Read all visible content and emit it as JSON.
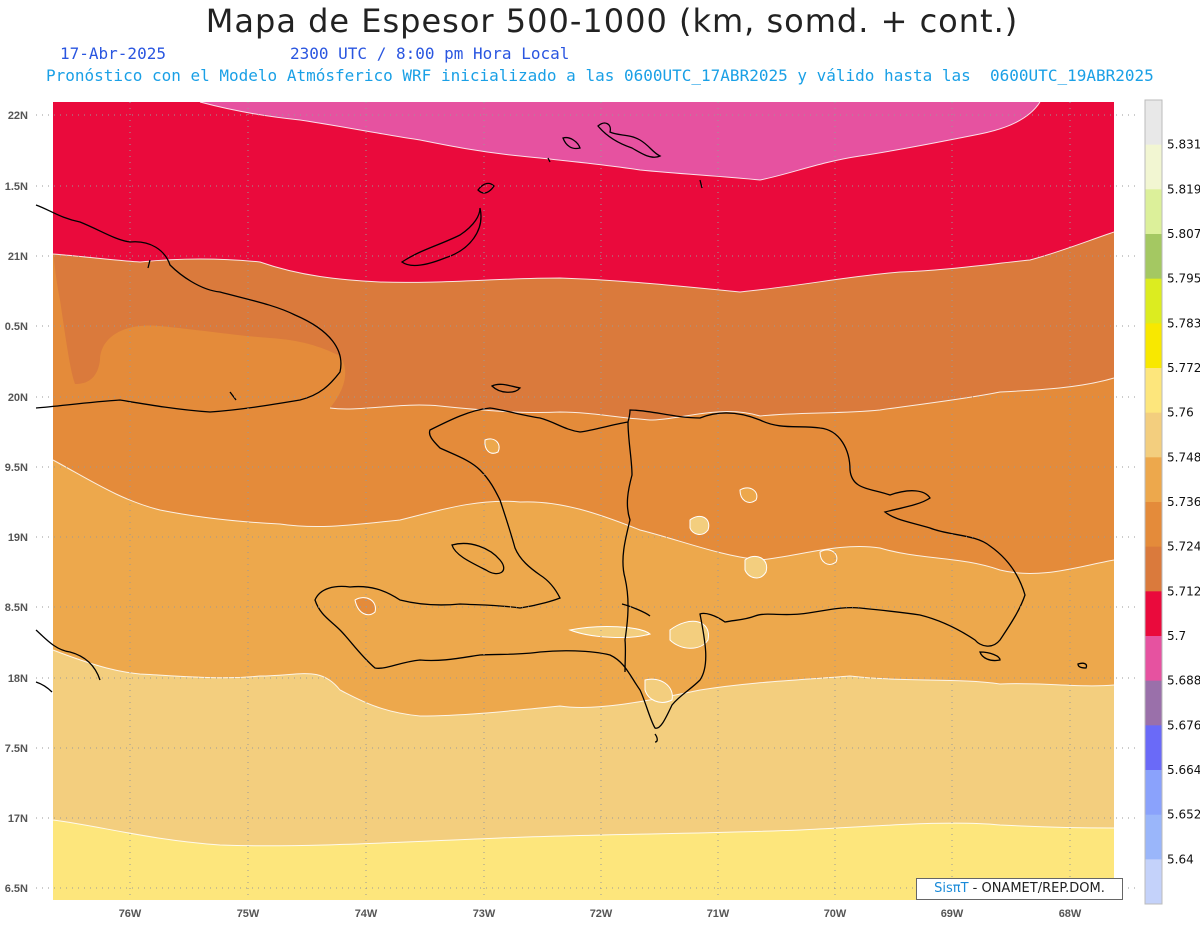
{
  "header": {
    "title": "Mapa de Espesor 500-1000 (km, somd. + cont.)",
    "date": "17-Abr-2025",
    "time": "2300 UTC / 8:00 pm Hora Local",
    "model_line": "Pronóstico con el Modelo Atmósferico WRF inicializado a las 0600UTC_17ABR2025 y válido hasta las  0600UTC_19ABR2025"
  },
  "axes": {
    "lat_labels": [
      "22N",
      "1.5N",
      "21N",
      "0.5N",
      "20N",
      "9.5N",
      "19N",
      "8.5N",
      "18N",
      "7.5N",
      "17N",
      "6.5N"
    ],
    "lon_labels": [
      "76W",
      "75W",
      "74W",
      "73W",
      "72W",
      "71W",
      "70W",
      "69W",
      "68W"
    ]
  },
  "colorbar": {
    "levels": [
      "5.831",
      "5.819",
      "5.807",
      "5.795",
      "5.783",
      "5.772",
      "5.76",
      "5.748",
      "5.736",
      "5.724",
      "5.712",
      "5.7",
      "5.688",
      "5.676",
      "5.664",
      "5.652",
      "5.64"
    ],
    "colors": [
      "#e8e8e8",
      "#f2f6d2",
      "#dcf09a",
      "#a4c862",
      "#dcec20",
      "#f8e800",
      "#fde67c",
      "#f3ce7e",
      "#eda84c",
      "#e48b3a",
      "#da7a3c",
      "#ea0a3c",
      "#e652a0",
      "#9a70aa",
      "#6a6af8",
      "#8aa2fc",
      "#9ab6fa",
      "#c4d2fa"
    ]
  },
  "credit": {
    "brand": "SisπT",
    "org": "- ONAMET/REP.DOM."
  }
}
